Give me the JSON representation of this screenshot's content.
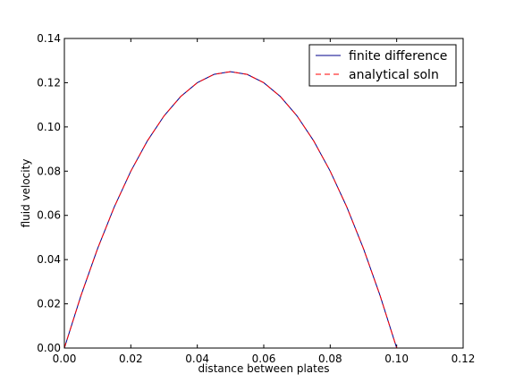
{
  "chart_data": {
    "type": "line",
    "title": "",
    "xlabel": "distance between plates",
    "ylabel": "fluid velocity",
    "xlim": [
      0.0,
      0.12
    ],
    "ylim": [
      0.0,
      0.14
    ],
    "x_ticks": [
      "0.00",
      "0.02",
      "0.04",
      "0.06",
      "0.08",
      "0.10",
      "0.12"
    ],
    "y_ticks": [
      "0.00",
      "0.02",
      "0.04",
      "0.06",
      "0.08",
      "0.10",
      "0.12",
      "0.14"
    ],
    "grid": false,
    "legend_position": "top-right",
    "x": [
      0.0,
      0.005,
      0.01,
      0.015,
      0.02,
      0.025,
      0.03,
      0.035,
      0.04,
      0.045,
      0.05,
      0.055,
      0.06,
      0.065,
      0.07,
      0.075,
      0.08,
      0.085,
      0.09,
      0.095,
      0.1
    ],
    "series": [
      {
        "name": "finite difference",
        "color": "#00008b",
        "style": "solid",
        "values": [
          0.0,
          0.02375,
          0.045,
          0.06375,
          0.08,
          0.09375,
          0.105,
          0.11375,
          0.12,
          0.12375,
          0.125,
          0.12375,
          0.12,
          0.11375,
          0.105,
          0.09375,
          0.08,
          0.06375,
          0.045,
          0.02375,
          0.0
        ]
      },
      {
        "name": "analytical soln",
        "color": "#ff0000",
        "style": "dashed",
        "values": [
          0.0,
          0.02375,
          0.045,
          0.06375,
          0.08,
          0.09375,
          0.105,
          0.11375,
          0.12,
          0.12375,
          0.125,
          0.12375,
          0.12,
          0.11375,
          0.105,
          0.09375,
          0.08,
          0.06375,
          0.045,
          0.02375,
          0.0
        ]
      }
    ]
  }
}
